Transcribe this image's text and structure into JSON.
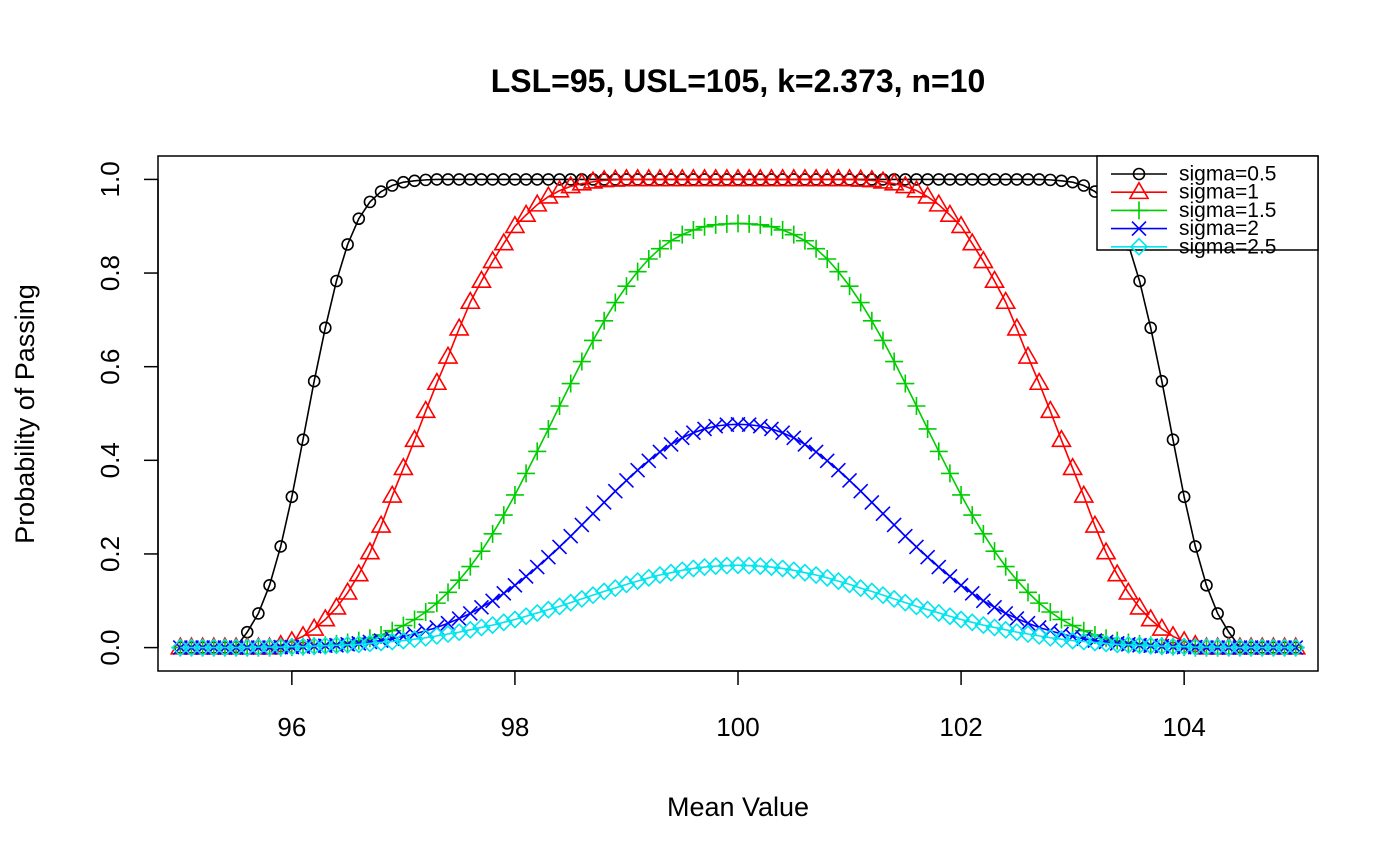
{
  "chart_data": {
    "type": "line",
    "title": "LSL=95, USL=105, k=2.373, n=10",
    "xlabel": "Mean Value",
    "ylabel": "Probability of Passing",
    "xlim": [
      94.8,
      105.2
    ],
    "ylim": [
      -0.05,
      1.05
    ],
    "x_ticks": [
      96,
      98,
      100,
      102,
      104
    ],
    "x_tick_labels": [
      "96",
      "98",
      "100",
      "102",
      "104"
    ],
    "y_ticks": [
      0.0,
      0.2,
      0.4,
      0.6,
      0.8,
      1.0
    ],
    "y_tick_labels": [
      "0.0",
      "0.2",
      "0.4",
      "0.6",
      "0.8",
      "1.0"
    ],
    "grid": false,
    "legend_position": "top-right",
    "x": [
      95.0,
      95.1,
      95.2,
      95.3,
      95.4,
      95.5,
      95.6,
      95.7,
      95.8,
      95.9,
      96.0,
      96.1,
      96.2,
      96.3,
      96.4,
      96.5,
      96.6,
      96.7,
      96.8,
      96.9,
      97.0,
      97.1,
      97.2,
      97.3,
      97.4,
      97.5,
      97.6,
      97.7,
      97.8,
      97.9,
      98.0,
      98.1,
      98.2,
      98.3,
      98.4,
      98.5,
      98.6,
      98.7,
      98.8,
      98.9,
      99.0,
      99.1,
      99.2,
      99.3,
      99.4,
      99.5,
      99.6,
      99.7,
      99.8,
      99.9,
      100.0,
      100.1,
      100.2,
      100.3,
      100.4,
      100.5,
      100.6,
      100.7,
      100.8,
      100.9,
      101.0,
      101.1,
      101.2,
      101.3,
      101.4,
      101.5,
      101.6,
      101.7,
      101.8,
      101.9,
      102.0,
      102.1,
      102.2,
      102.3,
      102.4,
      102.5,
      102.6,
      102.7,
      102.8,
      102.9,
      103.0,
      103.1,
      103.2,
      103.3,
      103.4,
      103.5,
      103.6,
      103.7,
      103.8,
      103.9,
      104.0,
      104.1,
      104.2,
      104.3,
      104.4,
      104.5,
      104.6,
      104.7,
      104.8,
      104.9,
      105.0
    ],
    "series": [
      {
        "name": "sigma=0.5",
        "color": "#000000",
        "marker": "circle",
        "values": [
          0.0,
          0.0,
          0.0,
          0.0,
          0.0,
          0.001,
          0.033,
          0.073,
          0.133,
          0.216,
          0.322,
          0.444,
          0.569,
          0.683,
          0.783,
          0.861,
          0.916,
          0.952,
          0.974,
          0.987,
          0.994,
          0.997,
          0.999,
          1.0,
          1.0,
          1.0,
          1.0,
          1.0,
          1.0,
          1.0,
          1.0,
          1.0,
          1.0,
          1.0,
          1.0,
          1.0,
          1.0,
          1.0,
          1.0,
          1.0,
          1.0,
          1.0,
          1.0,
          1.0,
          1.0,
          1.0,
          1.0,
          1.0,
          1.0,
          1.0,
          1.0,
          1.0,
          1.0,
          1.0,
          1.0,
          1.0,
          1.0,
          1.0,
          1.0,
          1.0,
          1.0,
          1.0,
          1.0,
          1.0,
          1.0,
          1.0,
          1.0,
          1.0,
          1.0,
          1.0,
          1.0,
          1.0,
          1.0,
          1.0,
          1.0,
          1.0,
          1.0,
          1.0,
          0.999,
          0.997,
          0.994,
          0.987,
          0.974,
          0.952,
          0.916,
          0.861,
          0.783,
          0.683,
          0.569,
          0.444,
          0.322,
          0.216,
          0.133,
          0.073,
          0.033,
          0.001,
          0.0,
          0.0,
          0.0,
          0.0,
          0.0
        ]
      },
      {
        "name": "sigma=1",
        "color": "#ff0000",
        "marker": "triangle",
        "values": [
          0.0,
          0.0,
          0.0,
          0.0,
          0.0,
          0.0,
          0.0,
          0.0,
          0.0,
          0.005,
          0.013,
          0.024,
          0.04,
          0.06,
          0.085,
          0.117,
          0.156,
          0.203,
          0.26,
          0.324,
          0.383,
          0.443,
          0.505,
          0.565,
          0.621,
          0.681,
          0.738,
          0.783,
          0.825,
          0.863,
          0.9,
          0.924,
          0.946,
          0.963,
          0.976,
          0.985,
          0.991,
          0.995,
          0.998,
          0.999,
          1.0,
          1.0,
          1.0,
          1.0,
          1.0,
          1.0,
          1.0,
          1.0,
          1.0,
          1.0,
          1.0,
          1.0,
          1.0,
          1.0,
          1.0,
          1.0,
          1.0,
          1.0,
          1.0,
          1.0,
          1.0,
          0.999,
          0.998,
          0.995,
          0.991,
          0.985,
          0.976,
          0.963,
          0.946,
          0.924,
          0.9,
          0.863,
          0.825,
          0.783,
          0.738,
          0.681,
          0.621,
          0.565,
          0.505,
          0.443,
          0.383,
          0.324,
          0.26,
          0.203,
          0.156,
          0.117,
          0.085,
          0.06,
          0.04,
          0.024,
          0.013,
          0.005,
          0.0,
          0.0,
          0.0,
          0.0,
          0.0,
          0.0,
          0.0,
          0.0,
          0.0
        ]
      },
      {
        "name": "sigma=1.5",
        "color": "#00cd00",
        "marker": "plus",
        "values": [
          0.0,
          0.0,
          0.0,
          0.0,
          0.0,
          0.0,
          0.0,
          0.0,
          0.0,
          0.0,
          0.001,
          0.002,
          0.003,
          0.005,
          0.008,
          0.011,
          0.015,
          0.02,
          0.027,
          0.036,
          0.047,
          0.06,
          0.076,
          0.095,
          0.118,
          0.144,
          0.173,
          0.206,
          0.243,
          0.283,
          0.326,
          0.372,
          0.419,
          0.467,
          0.516,
          0.564,
          0.611,
          0.656,
          0.698,
          0.737,
          0.772,
          0.803,
          0.83,
          0.852,
          0.869,
          0.882,
          0.892,
          0.899,
          0.903,
          0.905,
          0.906,
          0.905,
          0.903,
          0.899,
          0.892,
          0.882,
          0.869,
          0.852,
          0.83,
          0.803,
          0.772,
          0.737,
          0.698,
          0.656,
          0.611,
          0.564,
          0.516,
          0.467,
          0.419,
          0.372,
          0.326,
          0.283,
          0.243,
          0.206,
          0.173,
          0.144,
          0.118,
          0.095,
          0.076,
          0.06,
          0.047,
          0.036,
          0.027,
          0.02,
          0.015,
          0.011,
          0.008,
          0.005,
          0.003,
          0.002,
          0.001,
          0.0,
          0.0,
          0.0,
          0.0,
          0.0,
          0.0,
          0.0,
          0.0,
          0.0,
          0.0
        ]
      },
      {
        "name": "sigma=2",
        "color": "#0000ff",
        "marker": "x",
        "values": [
          0.0,
          0.0,
          0.0,
          0.0,
          0.0,
          0.0,
          0.0,
          0.0,
          0.0,
          0.001,
          0.001,
          0.002,
          0.003,
          0.004,
          0.005,
          0.007,
          0.009,
          0.012,
          0.015,
          0.019,
          0.024,
          0.029,
          0.036,
          0.043,
          0.052,
          0.062,
          0.073,
          0.086,
          0.1,
          0.116,
          0.133,
          0.152,
          0.172,
          0.193,
          0.215,
          0.238,
          0.262,
          0.286,
          0.31,
          0.334,
          0.357,
          0.379,
          0.399,
          0.418,
          0.434,
          0.448,
          0.459,
          0.467,
          0.473,
          0.476,
          0.477,
          0.476,
          0.473,
          0.467,
          0.459,
          0.448,
          0.434,
          0.418,
          0.399,
          0.379,
          0.357,
          0.334,
          0.31,
          0.286,
          0.262,
          0.238,
          0.215,
          0.193,
          0.172,
          0.152,
          0.133,
          0.116,
          0.1,
          0.086,
          0.073,
          0.062,
          0.052,
          0.043,
          0.036,
          0.029,
          0.024,
          0.019,
          0.015,
          0.012,
          0.009,
          0.007,
          0.005,
          0.004,
          0.003,
          0.002,
          0.001,
          0.001,
          0.0,
          0.0,
          0.0,
          0.0,
          0.0,
          0.0,
          0.0,
          0.0,
          0.0
        ]
      },
      {
        "name": "sigma=2.5",
        "color": "#00e5ee",
        "marker": "diamond",
        "values": [
          0.0,
          0.0,
          0.0,
          0.0,
          0.0,
          0.0,
          0.0,
          0.001,
          0.001,
          0.001,
          0.002,
          0.002,
          0.003,
          0.004,
          0.005,
          0.006,
          0.007,
          0.009,
          0.011,
          0.013,
          0.015,
          0.018,
          0.021,
          0.025,
          0.029,
          0.033,
          0.038,
          0.043,
          0.048,
          0.054,
          0.06,
          0.067,
          0.074,
          0.081,
          0.088,
          0.096,
          0.104,
          0.112,
          0.12,
          0.127,
          0.135,
          0.142,
          0.149,
          0.155,
          0.16,
          0.165,
          0.169,
          0.172,
          0.174,
          0.175,
          0.176,
          0.175,
          0.174,
          0.172,
          0.169,
          0.165,
          0.16,
          0.155,
          0.149,
          0.142,
          0.135,
          0.127,
          0.12,
          0.112,
          0.104,
          0.096,
          0.088,
          0.081,
          0.074,
          0.067,
          0.06,
          0.054,
          0.048,
          0.043,
          0.038,
          0.033,
          0.029,
          0.025,
          0.021,
          0.018,
          0.015,
          0.013,
          0.011,
          0.009,
          0.007,
          0.006,
          0.005,
          0.004,
          0.003,
          0.002,
          0.002,
          0.001,
          0.001,
          0.001,
          0.0,
          0.0,
          0.0,
          0.0,
          0.0,
          0.0,
          0.0
        ]
      }
    ]
  }
}
